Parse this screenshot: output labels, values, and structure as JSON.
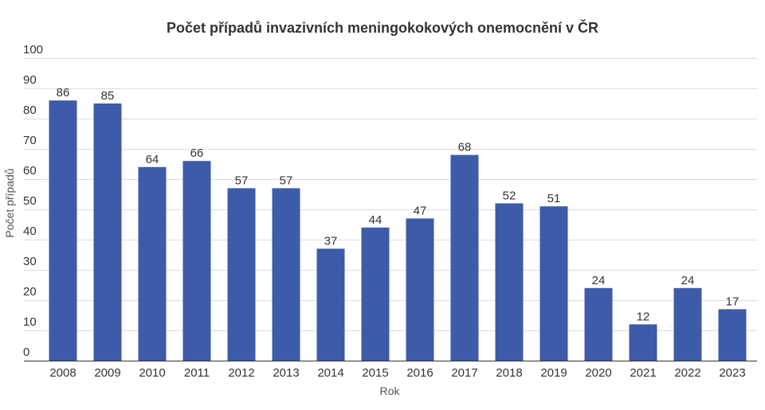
{
  "chart_data": {
    "type": "bar",
    "title": "Počet případů invazivních meningokokových onemocnění v ČR",
    "xlabel": "Rok",
    "ylabel": "Počet případů",
    "categories": [
      "2008",
      "2009",
      "2010",
      "2011",
      "2012",
      "2013",
      "2014",
      "2015",
      "2016",
      "2017",
      "2018",
      "2019",
      "2020",
      "2021",
      "2022",
      "2023"
    ],
    "values": [
      86,
      85,
      64,
      66,
      57,
      57,
      37,
      44,
      47,
      68,
      52,
      51,
      24,
      12,
      24,
      17
    ],
    "ylim": [
      0,
      100
    ],
    "yticks": [
      "0",
      "10",
      "20",
      "30",
      "40",
      "50",
      "60",
      "70",
      "80",
      "90",
      "100"
    ],
    "grid": true,
    "legend": "none",
    "colors": {
      "bar": "#3d5ba8",
      "grid": "#dddddd",
      "text": "#333333",
      "axis": "#333333"
    }
  }
}
